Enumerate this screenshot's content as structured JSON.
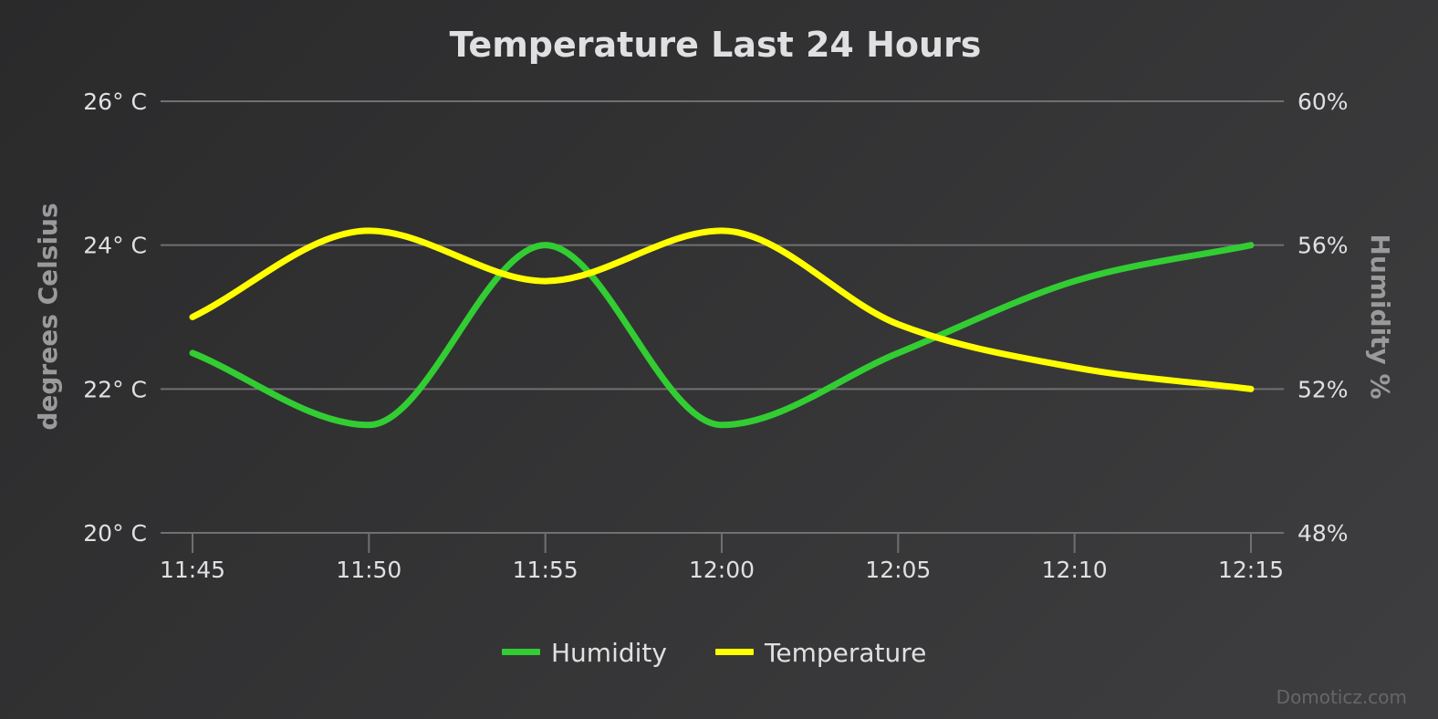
{
  "chart_data": {
    "type": "line",
    "title": "Temperature Last 24 Hours",
    "xlabel": "",
    "x": [
      "11:45",
      "11:50",
      "11:55",
      "12:00",
      "12:05",
      "12:10",
      "12:15"
    ],
    "y_axes": [
      {
        "id": "left",
        "title": "degrees Celsius",
        "ticks": [
          20,
          22,
          24,
          26
        ],
        "tick_labels": [
          "20° C",
          "22° C",
          "24° C",
          "26° C"
        ],
        "range": [
          20,
          26
        ]
      },
      {
        "id": "right",
        "title": "Humidity %",
        "ticks": [
          48,
          52,
          56,
          60
        ],
        "tick_labels": [
          "48%",
          "52%",
          "56%",
          "60%"
        ],
        "range": [
          48,
          60
        ]
      }
    ],
    "series": [
      {
        "name": "Humidity",
        "axis": "right",
        "color": "#32cd32",
        "values": [
          53,
          51,
          56,
          51,
          53,
          55,
          56
        ]
      },
      {
        "name": "Temperature",
        "axis": "left",
        "color": "#ffff00",
        "values": [
          23.0,
          24.2,
          23.5,
          24.2,
          22.9,
          22.3,
          22.0
        ]
      }
    ],
    "grid": true,
    "legend_position": "bottom-center",
    "credits": "Domoticz.com"
  },
  "colors": {
    "background_start": "#2a2a2b",
    "background_end": "#3e3e40",
    "gridline": "#707073",
    "text": "#e0e0e3",
    "axis_title": "#9a9a9a",
    "credits": "#666666"
  }
}
